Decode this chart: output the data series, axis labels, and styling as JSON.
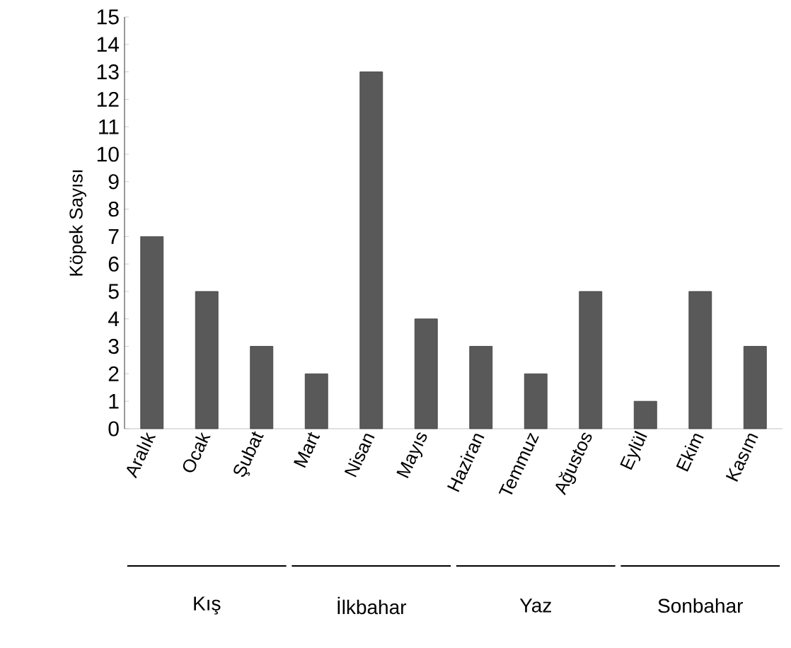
{
  "chart_data": {
    "type": "bar",
    "ylabel": "Köpek Sayısı",
    "categories": [
      "Aralık",
      "Ocak",
      "Şubat",
      "Mart",
      "Nisan",
      "Mayıs",
      "Haziran",
      "Temmuz",
      "Ağustos",
      "Eylül",
      "Ekim",
      "Kasım"
    ],
    "values": [
      7,
      5,
      3,
      2,
      13,
      4,
      3,
      2,
      5,
      1,
      5,
      3
    ],
    "color": "#595959",
    "ylim": [
      0,
      15
    ],
    "yticks": [
      0,
      1,
      2,
      3,
      4,
      5,
      6,
      7,
      8,
      9,
      10,
      11,
      12,
      13,
      14,
      15
    ],
    "annotations": [
      "Kış",
      "İlkbahar",
      "Yaz",
      "Sonbahar"
    ]
  }
}
